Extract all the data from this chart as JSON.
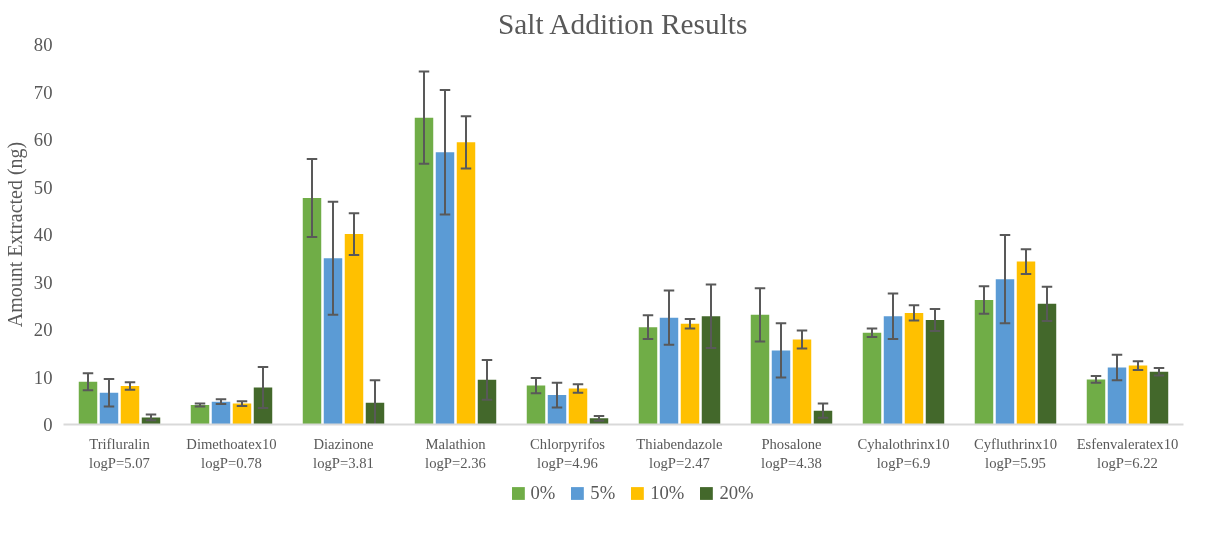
{
  "chart_data": {
    "type": "bar",
    "title": "Salt Addition Results",
    "ylabel": "Amount Extracted (ng)",
    "categories": [
      "Trifluralin\nlogP=5.07",
      "Dimethoatex10\nlogP=0.78",
      "Diazinone\nlogP=3.81",
      "Malathion\nlogP=2.36",
      "Chlorpyrifos\nlogP=4.96",
      "Thiabendazole\nlogP=2.47",
      "Phosalone\nlogP=4.38",
      "Cyhalothrinx10\nlogP=6.9",
      "Cyfluthrinx10\nlogP=5.95",
      "Esfenvaleratex10\nlogP=6.22"
    ],
    "series": [
      {
        "name": "0%",
        "color": "#70ad47",
        "values": [
          9.0,
          4.1,
          47.7,
          64.6,
          8.2,
          20.5,
          23.1,
          19.3,
          26.2,
          9.5
        ],
        "errors": [
          1.8,
          0.3,
          8.2,
          9.7,
          1.6,
          2.5,
          5.6,
          0.9,
          2.9,
          0.7
        ]
      },
      {
        "name": "5%",
        "color": "#5b9bd5",
        "values": [
          6.7,
          4.8,
          35.0,
          57.3,
          6.2,
          22.5,
          15.6,
          22.8,
          30.6,
          12.0
        ],
        "errors": [
          2.9,
          0.5,
          11.9,
          13.1,
          2.6,
          5.7,
          5.7,
          4.8,
          9.3,
          2.7
        ]
      },
      {
        "name": "10%",
        "color": "#ffc000",
        "values": [
          8.1,
          4.4,
          40.1,
          59.4,
          7.6,
          21.2,
          17.9,
          23.5,
          34.3,
          12.4
        ],
        "errors": [
          0.8,
          0.5,
          4.4,
          5.5,
          0.9,
          1.0,
          1.9,
          1.6,
          2.6,
          0.9
        ]
      },
      {
        "name": "20%",
        "color": "#43682b",
        "values": [
          1.5,
          7.8,
          4.6,
          9.4,
          1.3,
          22.8,
          2.9,
          22.0,
          25.4,
          11.1
        ],
        "errors": [
          0.6,
          4.3,
          4.7,
          4.2,
          0.5,
          6.7,
          1.5,
          2.3,
          3.6,
          0.8
        ]
      }
    ],
    "ylim": [
      0,
      80
    ],
    "yticks": [
      0,
      10,
      20,
      30,
      40,
      50,
      60,
      70,
      80
    ],
    "grid": false,
    "legend": "bottom"
  }
}
